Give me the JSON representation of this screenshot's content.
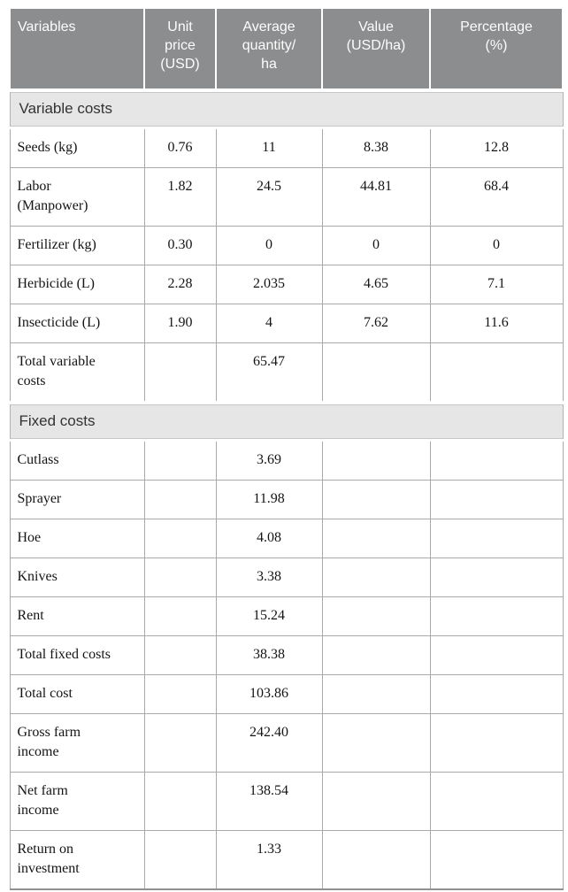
{
  "table": {
    "header": {
      "columns": [
        "Variables",
        "Unit\nprice\n(USD)",
        "Average\nquantity/\nha",
        "Value\n(USD/ha)",
        "Percentage\n(%)"
      ]
    },
    "sections": [
      {
        "title": "Variable costs",
        "rows": [
          {
            "cells": [
              "Seeds (kg)",
              "0.76",
              "11",
              "8.38",
              "12.8"
            ]
          },
          {
            "cells": [
              "Labor\n(Manpower)",
              "1.82",
              "24.5",
              "44.81",
              "68.4"
            ]
          },
          {
            "cells": [
              "Fertilizer (kg)",
              "0.30",
              "0",
              "0",
              "0"
            ]
          },
          {
            "cells": [
              "Herbicide (L)",
              "2.28",
              "2.035",
              "4.65",
              "7.1"
            ]
          },
          {
            "cells": [
              "Insecticide (L)",
              "1.90",
              "4",
              "7.62",
              "11.6"
            ]
          },
          {
            "cells": [
              "Total variable\ncosts",
              "",
              "65.47",
              "",
              ""
            ]
          }
        ]
      },
      {
        "title": "Fixed costs",
        "rows": [
          {
            "cells": [
              "Cutlass",
              "",
              "3.69",
              "",
              ""
            ]
          },
          {
            "cells": [
              "Sprayer",
              "",
              "11.98",
              "",
              ""
            ]
          },
          {
            "cells": [
              "Hoe",
              "",
              "4.08",
              "",
              ""
            ]
          },
          {
            "cells": [
              "Knives",
              "",
              "3.38",
              "",
              ""
            ]
          },
          {
            "cells": [
              "Rent",
              "",
              "15.24",
              "",
              ""
            ]
          },
          {
            "cells": [
              "Total fixed costs",
              "",
              "38.38",
              "",
              ""
            ]
          },
          {
            "cells": [
              "Total cost",
              "",
              "103.86",
              "",
              ""
            ]
          },
          {
            "cells": [
              "Gross farm\nincome",
              "",
              "242.40",
              "",
              ""
            ]
          },
          {
            "cells": [
              "Net farm\nincome",
              "",
              "138.54",
              "",
              ""
            ]
          },
          {
            "cells": [
              "Return on\ninvestment",
              "",
              "1.33",
              "",
              ""
            ]
          }
        ]
      }
    ],
    "colors": {
      "header_bg": "#8b8d8e",
      "header_text": "#fdfdfd",
      "section_bg": "#e6e6e7",
      "border": "#a9a9a9"
    }
  }
}
